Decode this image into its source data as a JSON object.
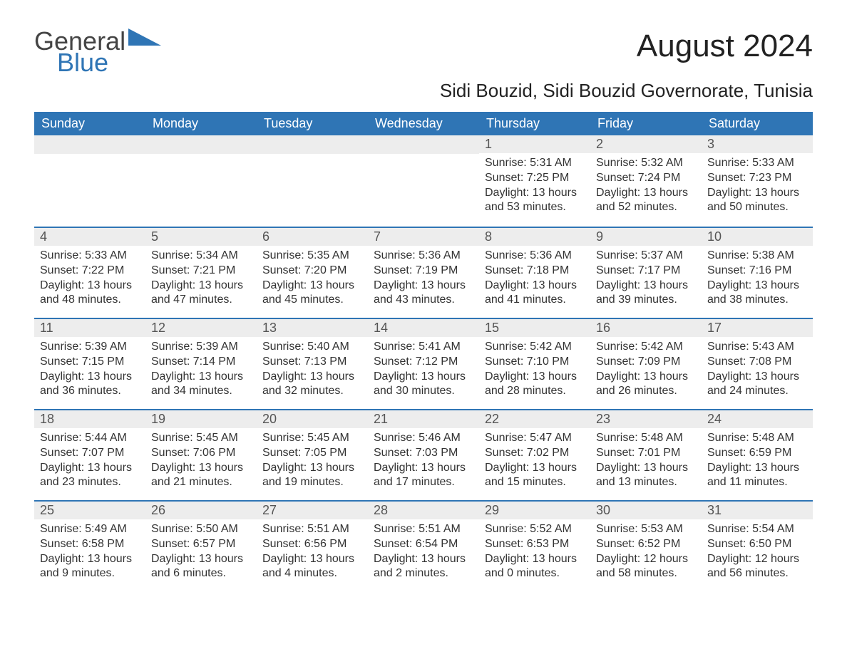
{
  "logo": {
    "word1": "General",
    "word2": "Blue"
  },
  "month_title": "August 2024",
  "location": "Sidi Bouzid, Sidi Bouzid Governorate, Tunisia",
  "colors": {
    "header_bg": "#2f75b5",
    "header_text": "#ffffff",
    "daynum_bg": "#ededed",
    "daynum_text": "#555555",
    "body_text": "#333333",
    "rule": "#2f75b5",
    "logo_blue": "#2f75b5",
    "logo_general": "#444444",
    "page_bg": "#ffffff"
  },
  "typography": {
    "month_title_fontsize": 44,
    "location_fontsize": 26,
    "weekday_fontsize": 18,
    "daynum_fontsize": 18,
    "body_fontsize": 16,
    "logo_fontsize": 36
  },
  "weekdays": [
    "Sunday",
    "Monday",
    "Tuesday",
    "Wednesday",
    "Thursday",
    "Friday",
    "Saturday"
  ],
  "weeks": [
    [
      null,
      null,
      null,
      null,
      {
        "day": "1",
        "sunrise": "Sunrise: 5:31 AM",
        "sunset": "Sunset: 7:25 PM",
        "daylight": "Daylight: 13 hours and 53 minutes."
      },
      {
        "day": "2",
        "sunrise": "Sunrise: 5:32 AM",
        "sunset": "Sunset: 7:24 PM",
        "daylight": "Daylight: 13 hours and 52 minutes."
      },
      {
        "day": "3",
        "sunrise": "Sunrise: 5:33 AM",
        "sunset": "Sunset: 7:23 PM",
        "daylight": "Daylight: 13 hours and 50 minutes."
      }
    ],
    [
      {
        "day": "4",
        "sunrise": "Sunrise: 5:33 AM",
        "sunset": "Sunset: 7:22 PM",
        "daylight": "Daylight: 13 hours and 48 minutes."
      },
      {
        "day": "5",
        "sunrise": "Sunrise: 5:34 AM",
        "sunset": "Sunset: 7:21 PM",
        "daylight": "Daylight: 13 hours and 47 minutes."
      },
      {
        "day": "6",
        "sunrise": "Sunrise: 5:35 AM",
        "sunset": "Sunset: 7:20 PM",
        "daylight": "Daylight: 13 hours and 45 minutes."
      },
      {
        "day": "7",
        "sunrise": "Sunrise: 5:36 AM",
        "sunset": "Sunset: 7:19 PM",
        "daylight": "Daylight: 13 hours and 43 minutes."
      },
      {
        "day": "8",
        "sunrise": "Sunrise: 5:36 AM",
        "sunset": "Sunset: 7:18 PM",
        "daylight": "Daylight: 13 hours and 41 minutes."
      },
      {
        "day": "9",
        "sunrise": "Sunrise: 5:37 AM",
        "sunset": "Sunset: 7:17 PM",
        "daylight": "Daylight: 13 hours and 39 minutes."
      },
      {
        "day": "10",
        "sunrise": "Sunrise: 5:38 AM",
        "sunset": "Sunset: 7:16 PM",
        "daylight": "Daylight: 13 hours and 38 minutes."
      }
    ],
    [
      {
        "day": "11",
        "sunrise": "Sunrise: 5:39 AM",
        "sunset": "Sunset: 7:15 PM",
        "daylight": "Daylight: 13 hours and 36 minutes."
      },
      {
        "day": "12",
        "sunrise": "Sunrise: 5:39 AM",
        "sunset": "Sunset: 7:14 PM",
        "daylight": "Daylight: 13 hours and 34 minutes."
      },
      {
        "day": "13",
        "sunrise": "Sunrise: 5:40 AM",
        "sunset": "Sunset: 7:13 PM",
        "daylight": "Daylight: 13 hours and 32 minutes."
      },
      {
        "day": "14",
        "sunrise": "Sunrise: 5:41 AM",
        "sunset": "Sunset: 7:12 PM",
        "daylight": "Daylight: 13 hours and 30 minutes."
      },
      {
        "day": "15",
        "sunrise": "Sunrise: 5:42 AM",
        "sunset": "Sunset: 7:10 PM",
        "daylight": "Daylight: 13 hours and 28 minutes."
      },
      {
        "day": "16",
        "sunrise": "Sunrise: 5:42 AM",
        "sunset": "Sunset: 7:09 PM",
        "daylight": "Daylight: 13 hours and 26 minutes."
      },
      {
        "day": "17",
        "sunrise": "Sunrise: 5:43 AM",
        "sunset": "Sunset: 7:08 PM",
        "daylight": "Daylight: 13 hours and 24 minutes."
      }
    ],
    [
      {
        "day": "18",
        "sunrise": "Sunrise: 5:44 AM",
        "sunset": "Sunset: 7:07 PM",
        "daylight": "Daylight: 13 hours and 23 minutes."
      },
      {
        "day": "19",
        "sunrise": "Sunrise: 5:45 AM",
        "sunset": "Sunset: 7:06 PM",
        "daylight": "Daylight: 13 hours and 21 minutes."
      },
      {
        "day": "20",
        "sunrise": "Sunrise: 5:45 AM",
        "sunset": "Sunset: 7:05 PM",
        "daylight": "Daylight: 13 hours and 19 minutes."
      },
      {
        "day": "21",
        "sunrise": "Sunrise: 5:46 AM",
        "sunset": "Sunset: 7:03 PM",
        "daylight": "Daylight: 13 hours and 17 minutes."
      },
      {
        "day": "22",
        "sunrise": "Sunrise: 5:47 AM",
        "sunset": "Sunset: 7:02 PM",
        "daylight": "Daylight: 13 hours and 15 minutes."
      },
      {
        "day": "23",
        "sunrise": "Sunrise: 5:48 AM",
        "sunset": "Sunset: 7:01 PM",
        "daylight": "Daylight: 13 hours and 13 minutes."
      },
      {
        "day": "24",
        "sunrise": "Sunrise: 5:48 AM",
        "sunset": "Sunset: 6:59 PM",
        "daylight": "Daylight: 13 hours and 11 minutes."
      }
    ],
    [
      {
        "day": "25",
        "sunrise": "Sunrise: 5:49 AM",
        "sunset": "Sunset: 6:58 PM",
        "daylight": "Daylight: 13 hours and 9 minutes."
      },
      {
        "day": "26",
        "sunrise": "Sunrise: 5:50 AM",
        "sunset": "Sunset: 6:57 PM",
        "daylight": "Daylight: 13 hours and 6 minutes."
      },
      {
        "day": "27",
        "sunrise": "Sunrise: 5:51 AM",
        "sunset": "Sunset: 6:56 PM",
        "daylight": "Daylight: 13 hours and 4 minutes."
      },
      {
        "day": "28",
        "sunrise": "Sunrise: 5:51 AM",
        "sunset": "Sunset: 6:54 PM",
        "daylight": "Daylight: 13 hours and 2 minutes."
      },
      {
        "day": "29",
        "sunrise": "Sunrise: 5:52 AM",
        "sunset": "Sunset: 6:53 PM",
        "daylight": "Daylight: 13 hours and 0 minutes."
      },
      {
        "day": "30",
        "sunrise": "Sunrise: 5:53 AM",
        "sunset": "Sunset: 6:52 PM",
        "daylight": "Daylight: 12 hours and 58 minutes."
      },
      {
        "day": "31",
        "sunrise": "Sunrise: 5:54 AM",
        "sunset": "Sunset: 6:50 PM",
        "daylight": "Daylight: 12 hours and 56 minutes."
      }
    ]
  ]
}
